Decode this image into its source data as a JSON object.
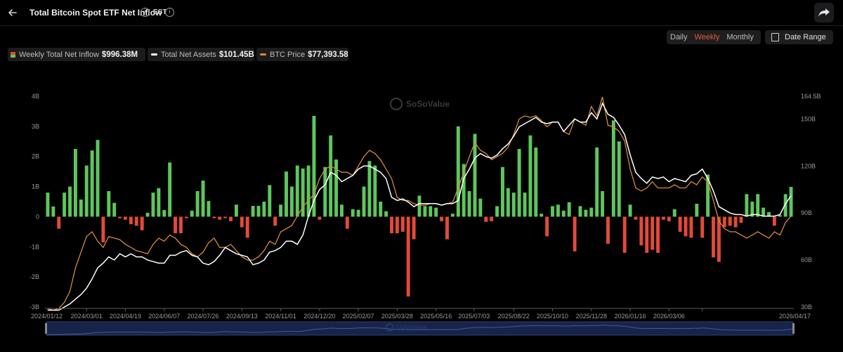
{
  "header": {
    "title": "Total Bitcoin Spot ETF Net Inflow",
    "timezone": "EST",
    "info_symbol": "i"
  },
  "period_tabs": [
    {
      "label": "Daily",
      "active": false
    },
    {
      "label": "Weekly",
      "active": true
    },
    {
      "label": "Monthly",
      "active": false
    }
  ],
  "date_range_label": "Date Range",
  "icons": {
    "back": "arrow-left-icon",
    "share": "share-icon",
    "info": "info-icon",
    "calendar": "calendar-icon"
  },
  "legend": [
    {
      "label": "Weekly Total Net Inflow",
      "value": "$996.38M"
    },
    {
      "label": "Total Net Assets",
      "value": "$101.45B"
    },
    {
      "label": "BTC Price",
      "value": "$77,393.58"
    }
  ],
  "colors": {
    "positive": "#5ec65e",
    "negative": "#e34a3a",
    "net_assets_line": "#ffffff",
    "btc_price_line": "#d58a38",
    "active_tab": "#e8573c"
  },
  "watermark": "SoSoValue",
  "chart_data": {
    "type": "bar",
    "yaxis_left": {
      "ticks": [
        "4B",
        "3B",
        "2B",
        "1B",
        "0",
        "-1B",
        "-2B",
        "-3B"
      ],
      "range": [
        -3,
        4
      ],
      "unit": "B USD"
    },
    "yaxis_right": {
      "ticks": [
        "164.5B",
        "150B",
        "120B",
        "90B",
        "60B",
        "30B"
      ],
      "range": [
        30,
        164.5
      ],
      "unit": "B USD"
    },
    "x_tick_labels": [
      "2024/01/12",
      "2024/03/01",
      "2024/04/19",
      "2024/06/07",
      "2024/07/26",
      "2024/09/13",
      "2024/11/01",
      "2024/12/20",
      "2025/02/07",
      "2025/03/28",
      "2025/05/16",
      "2025/07/03",
      "2025/08/22",
      "2025/10/10",
      "2025/11/28",
      "2026/01/16",
      "2026/03/06",
      "2026/04/17"
    ],
    "x_start": "2024/01/12",
    "x_interval_days": 7,
    "series": [
      {
        "name": "Weekly Total Net Inflow",
        "type": "bar",
        "axis": "left",
        "values": [
          0.8,
          0.34,
          -0.4,
          0.8,
          1.0,
          2.25,
          0.57,
          1.7,
          2.2,
          2.55,
          -0.85,
          0.85,
          0.46,
          -0.05,
          -0.1,
          -0.25,
          -0.3,
          -0.45,
          0.13,
          0.8,
          0.95,
          0.22,
          1.8,
          -0.55,
          -0.55,
          -0.05,
          0.2,
          0.85,
          1.2,
          0.52,
          -0.05,
          -0.1,
          -0.05,
          -0.15,
          0.4,
          -0.35,
          -0.7,
          0.36,
          0.36,
          0.5,
          1.05,
          -0.3,
          0.4,
          1.5,
          1.0,
          1.7,
          1.6,
          1.7,
          3.35,
          -0.1,
          1.65,
          2.7,
          1.9,
          0.4,
          -0.4,
          0.25,
          0.23,
          1.0,
          1.85,
          1.7,
          0.5,
          0.18,
          -0.55,
          -0.55,
          -0.5,
          -2.65,
          -0.75,
          0.7,
          0.35,
          0.35,
          0.3,
          -0.15,
          -0.75,
          0.1,
          3.0,
          1.75,
          0.85,
          2.75,
          0.6,
          -0.17,
          -0.15,
          0.35,
          1.65,
          0.95,
          0.8,
          2.25,
          0.8,
          2.7,
          2.3,
          0.1,
          -0.65,
          0.35,
          0.4,
          0.2,
          0.48,
          -1.15,
          0.35,
          0.23,
          0.3,
          2.3,
          0.85,
          -0.9,
          3.2,
          2.5,
          -1.2,
          0.4,
          -0.1,
          -0.95,
          -1.2,
          -1.1,
          -1.2,
          -0.1,
          -0.15,
          0.25,
          -0.5,
          -0.65,
          -0.7,
          0.43,
          -0.7,
          1.4,
          -1.35,
          -1.5,
          -0.35,
          -0.3,
          -0.35,
          -0.2,
          0.75,
          0.5,
          0.75,
          0.3,
          0.15,
          -0.3,
          0.05,
          0.75,
          0.99
        ]
      },
      {
        "name": "Total Net Assets",
        "type": "line",
        "axis": "right",
        "values": [
          28,
          28,
          28,
          30,
          32,
          35,
          38,
          42,
          48,
          55,
          58,
          62,
          60,
          64,
          62,
          64,
          62,
          62,
          60,
          59,
          58,
          58,
          63,
          63,
          65,
          66,
          63,
          62,
          58,
          57,
          59,
          63,
          68,
          66,
          64,
          63,
          62,
          57,
          58,
          60,
          65,
          66,
          68,
          72,
          72,
          70,
          76,
          88,
          98,
          105,
          108,
          116,
          114,
          110,
          112,
          114,
          118,
          120,
          120,
          118,
          116,
          112,
          100,
          98,
          99,
          97,
          94,
          96,
          96,
          96,
          96,
          95,
          96,
          96,
          98,
          112,
          118,
          125,
          128,
          126,
          125,
          127,
          131,
          134,
          139,
          145,
          147,
          149,
          151,
          148,
          147,
          148,
          148,
          142,
          146,
          150,
          148,
          148,
          154,
          150,
          160,
          153,
          151,
          146,
          140,
          127,
          116,
          112,
          109,
          113,
          112,
          113,
          110,
          112,
          111,
          110,
          114,
          115,
          118,
          112,
          104,
          94,
          92,
          90,
          89,
          89,
          88,
          89,
          89,
          88,
          88,
          88,
          89,
          96,
          101
        ]
      },
      {
        "name": "BTC Price",
        "type": "line",
        "axis": "right",
        "values": [
          29,
          28,
          29,
          33,
          40,
          55,
          65,
          75,
          78,
          72,
          68,
          75,
          74,
          73,
          70,
          68,
          66,
          65,
          64,
          70,
          74,
          72,
          76,
          74,
          70,
          68,
          64,
          62,
          65,
          71,
          74,
          68,
          68,
          70,
          66,
          62,
          60,
          60,
          62,
          66,
          72,
          70,
          78,
          80,
          82,
          88,
          94,
          98,
          102,
          112,
          118,
          120,
          118,
          116,
          116,
          114,
          120,
          126,
          130,
          128,
          124,
          118,
          112,
          100,
          98,
          98,
          96,
          95,
          95,
          96,
          96,
          95,
          96,
          97,
          106,
          116,
          126,
          135,
          130,
          128,
          124,
          126,
          128,
          132,
          140,
          150,
          152,
          151,
          152,
          149,
          145,
          148,
          148,
          142,
          140,
          150,
          148,
          146,
          158,
          152,
          164,
          146,
          145,
          142,
          136,
          118,
          106,
          104,
          106,
          110,
          106,
          106,
          106,
          108,
          106,
          106,
          110,
          108,
          113,
          110,
          98,
          85,
          80,
          78,
          78,
          76,
          74,
          76,
          78,
          76,
          74,
          78,
          76,
          84,
          88
        ]
      }
    ],
    "legend_placement": "top-left",
    "grid": false
  }
}
